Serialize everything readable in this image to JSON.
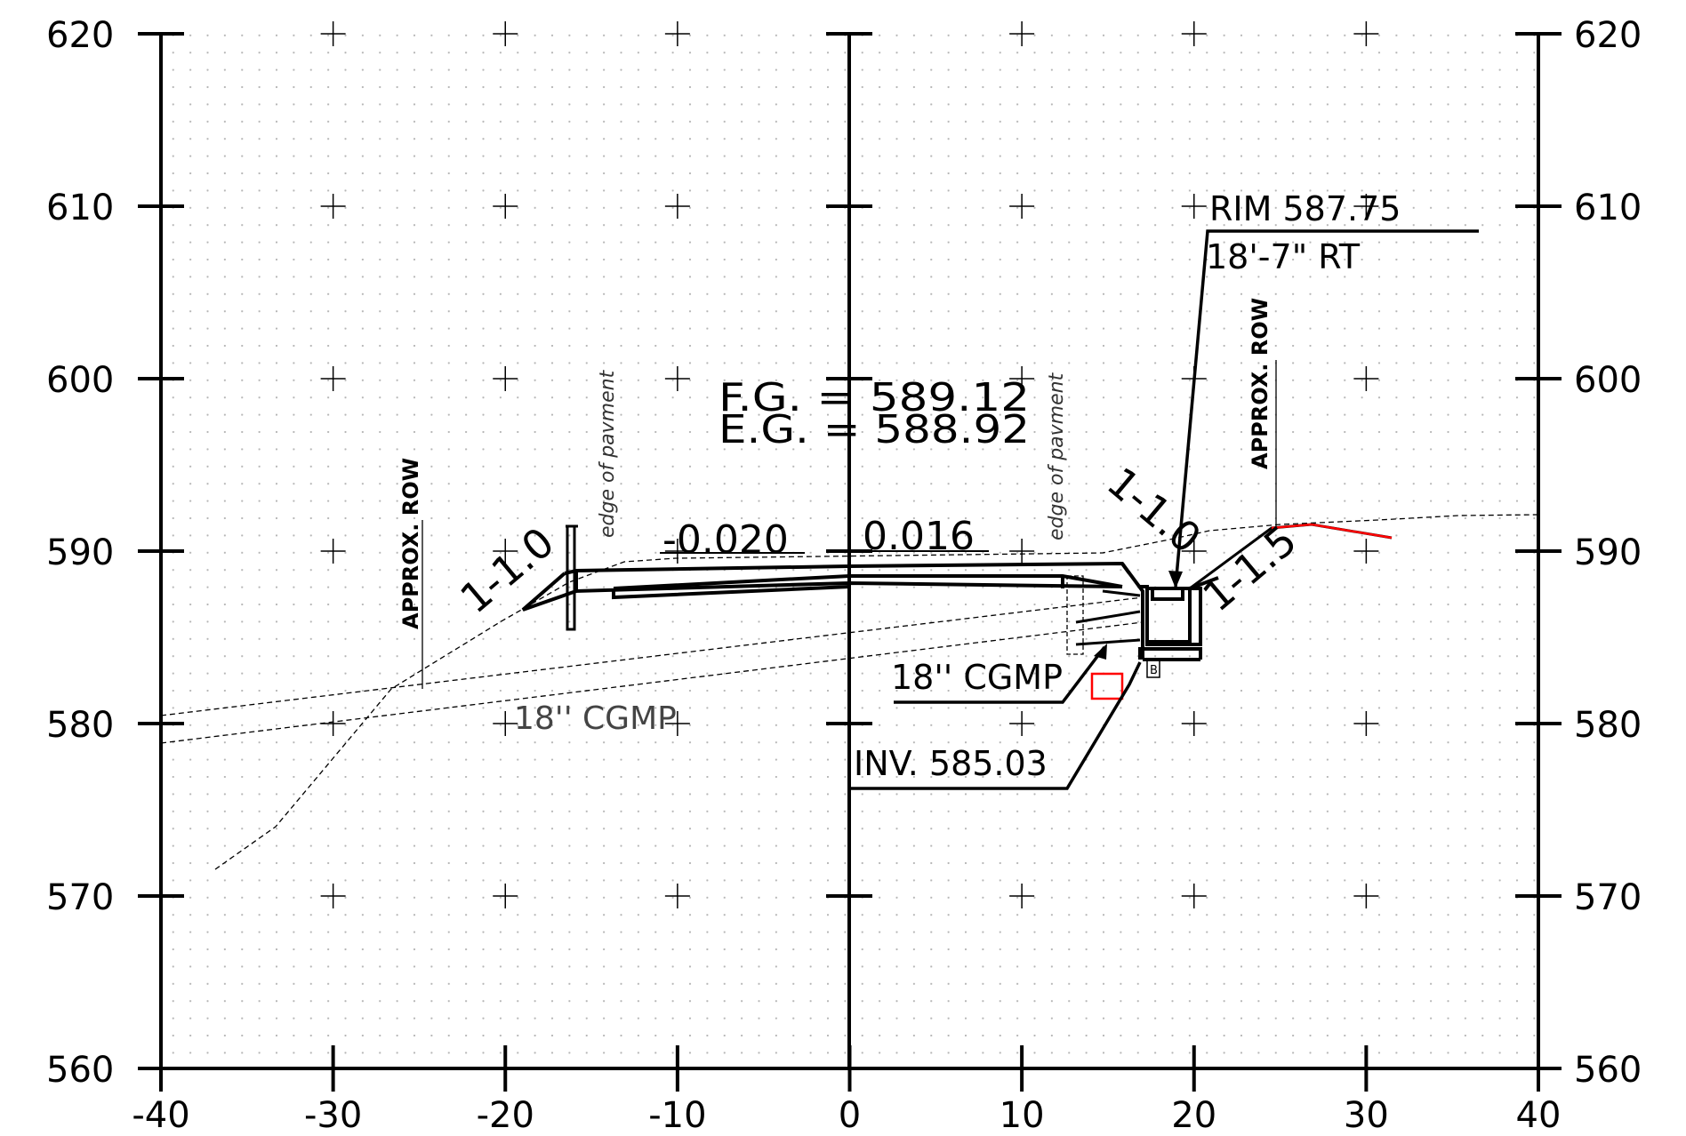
{
  "axes": {
    "x_ticks": [
      "-40",
      "-30",
      "-20",
      "-10",
      "0",
      "10",
      "20",
      "30",
      "40"
    ],
    "y_ticks": [
      "620",
      "610",
      "600",
      "590",
      "580",
      "570",
      "560"
    ],
    "x_range": [
      -40,
      40
    ],
    "y_range": [
      560,
      620
    ],
    "grid": "dotted with + markers"
  },
  "annotations": {
    "fg": "F.G.  =  589.12",
    "eg": "E.G.  =  588.92",
    "slope_left": "-0.020",
    "slope_right": "0.016",
    "rim": "RIM  587.75",
    "rim_offset": "18'-7\" RT",
    "approx_row": "APPROX. ROW",
    "edge_pavement": "edge  of  pavment",
    "cgmp_bold": "18'' CGMP",
    "cgmp_light": "18'' CGMP",
    "inv": "INV. 585.03",
    "side_slope_left": "1-1.0",
    "side_slope_mid": "1-1.0",
    "side_slope_right": "1-1.5",
    "structure_tag": "B"
  },
  "colors": {
    "line": "#000000",
    "highlight": "#ff0000"
  }
}
